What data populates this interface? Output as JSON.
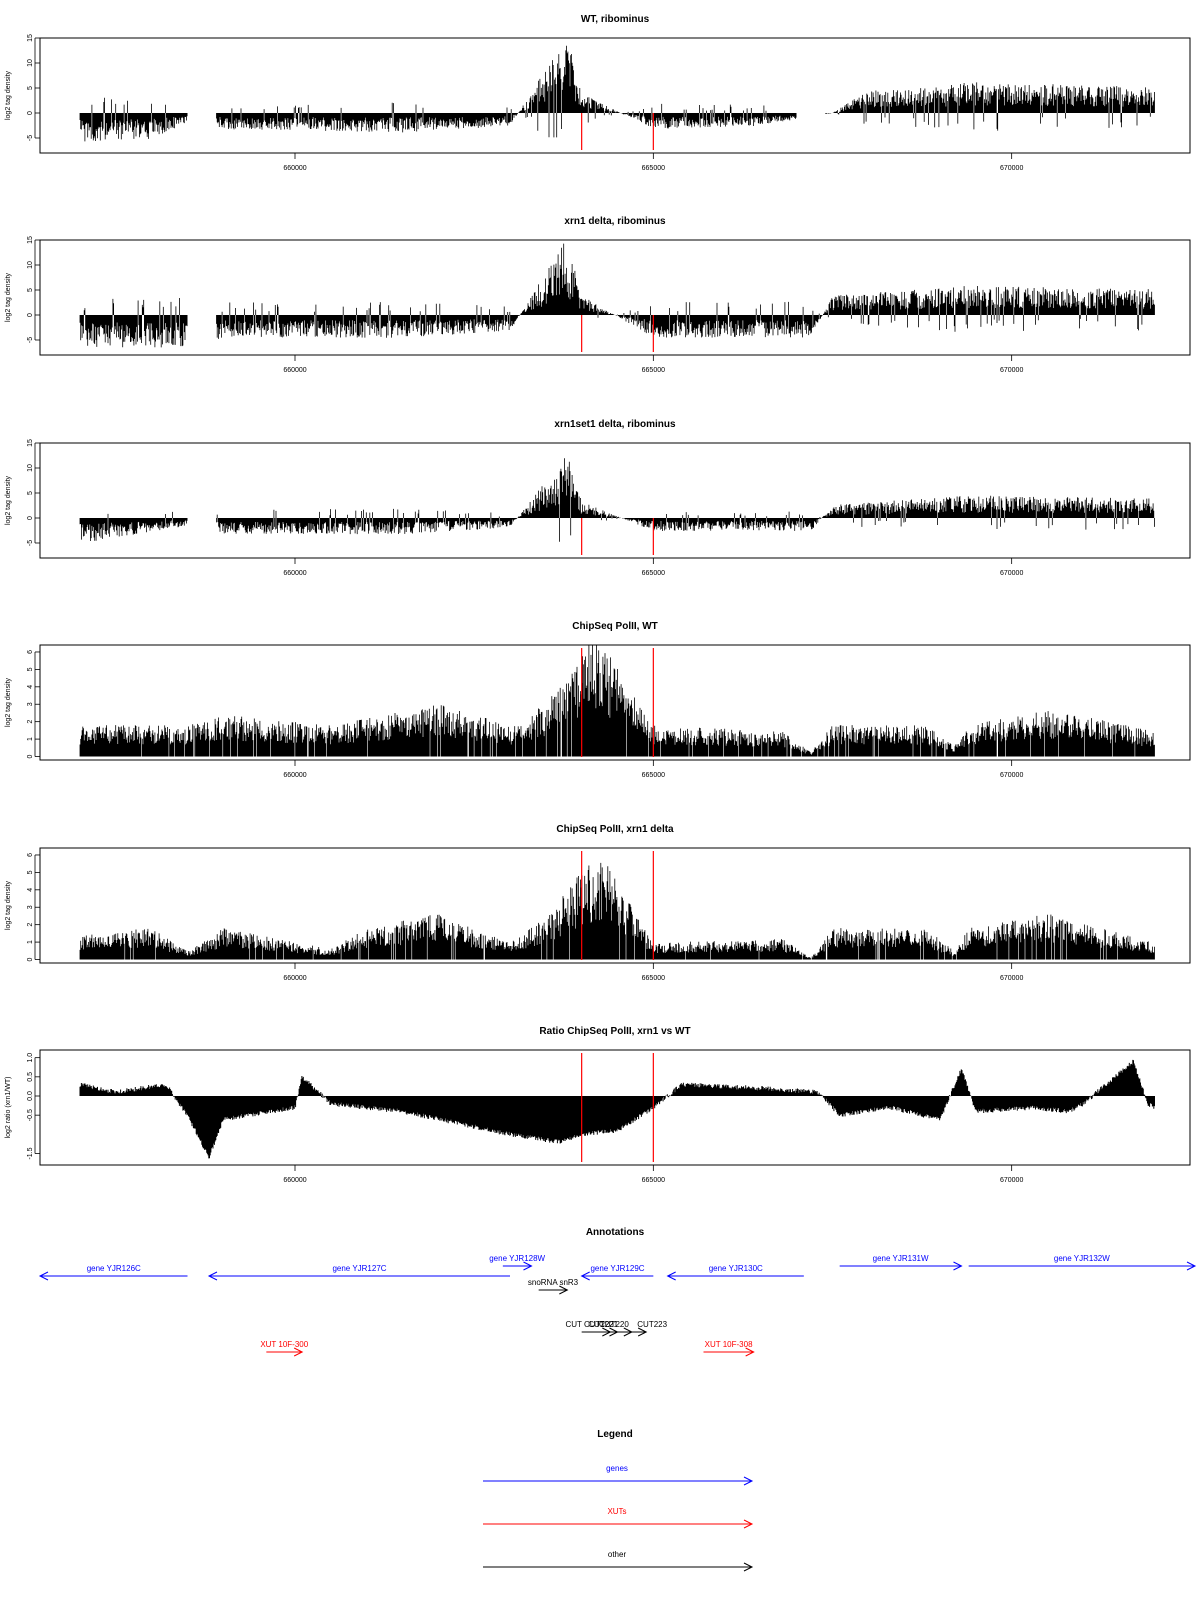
{
  "colors": {
    "genes": "#0000ff",
    "xuts": "#ff0000",
    "other": "#000000",
    "marker": "#ff0000",
    "bars": "#000000"
  },
  "chart_data": [
    {
      "type": "bar",
      "title": "WT, ribominus",
      "ylabel": "log2 tag density",
      "ylim": [
        -8,
        15
      ],
      "yticks": [
        "-5",
        "0",
        "5",
        "10",
        "15"
      ],
      "xlim": [
        657000,
        672000
      ],
      "xticks": [
        "660000",
        "665000",
        "670000"
      ],
      "profile": [
        [
          657000,
          -4.5
        ],
        [
          658000,
          -4
        ],
        [
          658600,
          -1
        ],
        [
          659000,
          -2.5
        ],
        [
          661500,
          -3
        ],
        [
          663000,
          -2
        ],
        [
          663800,
          12
        ],
        [
          664000,
          3
        ],
        [
          665000,
          -2.5
        ],
        [
          666500,
          -2
        ],
        [
          667500,
          0
        ],
        [
          668000,
          3.5
        ],
        [
          669000,
          4
        ],
        [
          669400,
          4.8
        ],
        [
          672000,
          4
        ]
      ]
    },
    {
      "type": "bar",
      "title": "xrn1 delta, ribominus",
      "ylabel": "log2 tag density",
      "ylim": [
        -8,
        15
      ],
      "yticks": [
        "-5",
        "0",
        "5",
        "10",
        "15"
      ],
      "xlim": [
        657000,
        672000
      ],
      "xticks": [
        "660000",
        "665000",
        "670000"
      ],
      "profile": [
        [
          657000,
          -5
        ],
        [
          658600,
          -5
        ],
        [
          659000,
          -3.5
        ],
        [
          661500,
          -3.5
        ],
        [
          663000,
          -2.5
        ],
        [
          663800,
          12
        ],
        [
          664000,
          3
        ],
        [
          665000,
          -3.5
        ],
        [
          667200,
          -3.5
        ],
        [
          667500,
          3
        ],
        [
          669400,
          4.5
        ],
        [
          672000,
          4
        ]
      ]
    },
    {
      "type": "bar",
      "title": "xrn1set1 delta, ribominus",
      "ylabel": "log2 tag density",
      "ylim": [
        -8,
        15
      ],
      "yticks": [
        "-5",
        "0",
        "5",
        "10",
        "15"
      ],
      "xlim": [
        657000,
        672000
      ],
      "xticks": [
        "660000",
        "665000",
        "670000"
      ],
      "profile": [
        [
          657000,
          -4
        ],
        [
          658600,
          -1
        ],
        [
          659000,
          -2.5
        ],
        [
          661500,
          -2.5
        ],
        [
          663000,
          -1.5
        ],
        [
          663800,
          10
        ],
        [
          664000,
          2.5
        ],
        [
          665000,
          -2
        ],
        [
          667200,
          -2
        ],
        [
          667500,
          2
        ],
        [
          669400,
          3.5
        ],
        [
          672000,
          3
        ]
      ]
    },
    {
      "type": "bar",
      "title": "ChipSeq PolII, WT",
      "ylabel": "log2 tag density",
      "ylim": [
        -0.2,
        6.4
      ],
      "yticks": [
        "0",
        "1",
        "2",
        "3",
        "4",
        "5",
        "6"
      ],
      "xlim": [
        657000,
        672000
      ],
      "xticks": [
        "660000",
        "665000",
        "670000"
      ],
      "profile": [
        [
          657000,
          1.5
        ],
        [
          658500,
          1.5
        ],
        [
          659000,
          2
        ],
        [
          660500,
          1.5
        ],
        [
          662000,
          2.5
        ],
        [
          663000,
          1.5
        ],
        [
          663500,
          2.5
        ],
        [
          664000,
          5
        ],
        [
          664200,
          6
        ],
        [
          665000,
          1.5
        ],
        [
          666800,
          1.2
        ],
        [
          667200,
          0.2
        ],
        [
          667500,
          1.5
        ],
        [
          668800,
          1.5
        ],
        [
          669200,
          0.5
        ],
        [
          669400,
          1.5
        ],
        [
          670500,
          2.3
        ],
        [
          672000,
          1.2
        ]
      ]
    },
    {
      "type": "bar",
      "title": "ChipSeq PolII, xrn1 delta",
      "ylabel": "log2 tag density",
      "ylim": [
        -0.2,
        6.4
      ],
      "yticks": [
        "0",
        "1",
        "2",
        "3",
        "4",
        "5",
        "6"
      ],
      "xlim": [
        657000,
        672000
      ],
      "xticks": [
        "660000",
        "665000",
        "670000"
      ],
      "profile": [
        [
          657000,
          1.2
        ],
        [
          658000,
          1.5
        ],
        [
          658500,
          0.4
        ],
        [
          659000,
          1.5
        ],
        [
          660500,
          0.5
        ],
        [
          661000,
          1.5
        ],
        [
          662000,
          2.2
        ],
        [
          663000,
          0.8
        ],
        [
          663500,
          2
        ],
        [
          664000,
          4.3
        ],
        [
          664300,
          5
        ],
        [
          665000,
          0.8
        ],
        [
          666800,
          1
        ],
        [
          667200,
          0.1
        ],
        [
          667500,
          1.5
        ],
        [
          668800,
          1.5
        ],
        [
          669200,
          0.4
        ],
        [
          669400,
          1.5
        ],
        [
          670500,
          2.2
        ],
        [
          672000,
          0.8
        ]
      ]
    },
    {
      "type": "area",
      "title": "Ratio ChipSeq PolII, xrn1 vs WT",
      "ylabel": "log2 ratio (xrn1/WT)",
      "ylim": [
        -1.8,
        1.2
      ],
      "yticks": [
        "-1.5",
        "-0.5",
        "0.0",
        "0.5",
        "1.0"
      ],
      "xlim": [
        657000,
        672000
      ],
      "xticks": [
        "660000",
        "665000",
        "670000"
      ],
      "profile": [
        [
          657000,
          0.3
        ],
        [
          657500,
          0.1
        ],
        [
          658200,
          0.3
        ],
        [
          658500,
          -0.5
        ],
        [
          658800,
          -1.6
        ],
        [
          659000,
          -0.6
        ],
        [
          660000,
          -0.3
        ],
        [
          660100,
          0.5
        ],
        [
          660500,
          -0.2
        ],
        [
          661500,
          -0.4
        ],
        [
          662500,
          -0.8
        ],
        [
          663000,
          -1.0
        ],
        [
          663700,
          -1.2
        ],
        [
          664000,
          -1.0
        ],
        [
          664500,
          -0.9
        ],
        [
          665000,
          -0.3
        ],
        [
          665400,
          0.3
        ],
        [
          666500,
          0.2
        ],
        [
          667300,
          0.1
        ],
        [
          667600,
          -0.5
        ],
        [
          668300,
          -0.3
        ],
        [
          669000,
          -0.6
        ],
        [
          669300,
          0.7
        ],
        [
          669500,
          -0.4
        ],
        [
          670300,
          -0.3
        ],
        [
          670800,
          -0.4
        ],
        [
          671000,
          -0.2
        ],
        [
          671700,
          0.9
        ],
        [
          671900,
          -0.2
        ],
        [
          672000,
          -0.3
        ]
      ]
    }
  ],
  "markers": [
    664000,
    665000
  ],
  "annotations": {
    "title": "Annotations",
    "genes": [
      {
        "label": "gene YJR126C",
        "start": 656300,
        "end": 658500,
        "dir": "left"
      },
      {
        "label": "gene YJR127C",
        "start": 658800,
        "end": 663000,
        "dir": "left"
      },
      {
        "label": "gene YJR128W",
        "start": 662900,
        "end": 663300,
        "dir": "right"
      },
      {
        "label": "gene YJR129C",
        "start": 664000,
        "end": 665000,
        "dir": "left"
      },
      {
        "label": "gene YJR130C",
        "start": 665200,
        "end": 667100,
        "dir": "left"
      },
      {
        "label": "gene YJR131W",
        "start": 667600,
        "end": 669300,
        "dir": "right"
      },
      {
        "label": "gene YJR132W",
        "start": 669400,
        "end": 672600,
        "dir": "right"
      }
    ],
    "others": [
      {
        "label": "snoRNA snR3",
        "start": 663400,
        "end": 663800,
        "dir": "right"
      },
      {
        "label": "CUT CUT222",
        "start": 664000,
        "end": 664400,
        "dir": "right"
      },
      {
        "label": "CUT221",
        "start": 664100,
        "end": 664500,
        "dir": "right"
      },
      {
        "label": "CUT220",
        "start": 664200,
        "end": 664700,
        "dir": "right"
      },
      {
        "label": "CUT223",
        "start": 664400,
        "end": 664900,
        "dir": "right"
      }
    ],
    "xuts": [
      {
        "label": "XUT 10F-300",
        "start": 659600,
        "end": 660100,
        "dir": "right"
      },
      {
        "label": "XUT 10F-308",
        "start": 665700,
        "end": 666400,
        "dir": "right"
      }
    ]
  },
  "legend": {
    "title": "Legend",
    "items": [
      {
        "label": "genes",
        "kind": "genes"
      },
      {
        "label": "XUTs",
        "kind": "xuts"
      },
      {
        "label": "other",
        "kind": "other"
      }
    ]
  }
}
